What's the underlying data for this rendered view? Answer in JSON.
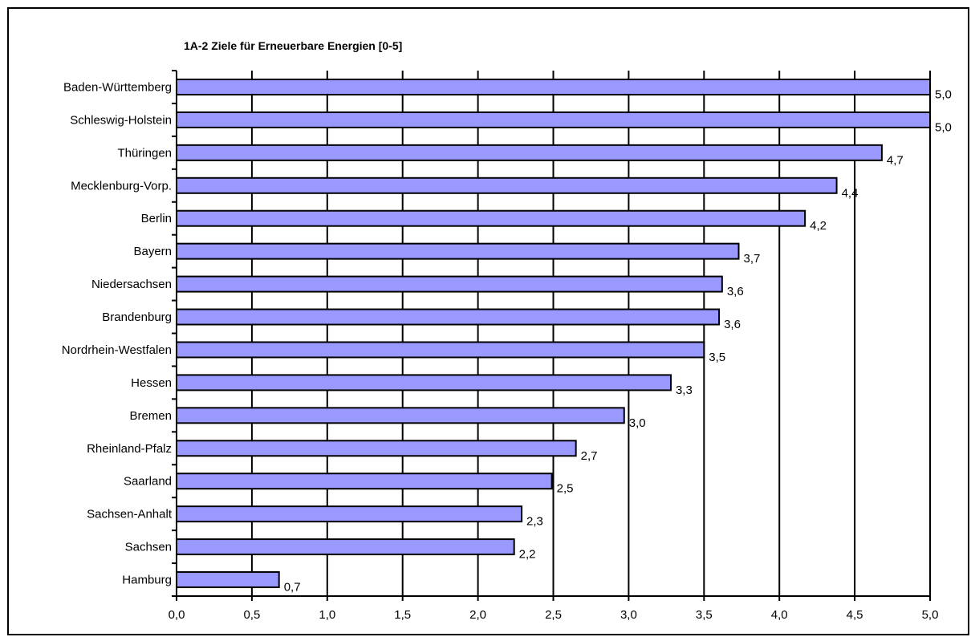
{
  "chart_data": {
    "type": "bar",
    "orientation": "horizontal",
    "title": "1A-2 Ziele für Erneuerbare Energien [0-5]",
    "xlabel": "",
    "ylabel": "",
    "xlim": [
      0,
      5
    ],
    "x_ticks": [
      "0,0",
      "0,5",
      "1,0",
      "1,5",
      "2,0",
      "2,5",
      "3,0",
      "3,5",
      "4,0",
      "4,5",
      "5,0"
    ],
    "grid": true,
    "legend": "none",
    "bar_color": "#9999ff",
    "categories": [
      "Baden-Württemberg",
      "Schleswig-Holstein",
      "Thüringen",
      "Mecklenburg-Vorp.",
      "Berlin",
      "Bayern",
      "Niedersachsen",
      "Brandenburg",
      "Nordrhein-Westfalen",
      "Hessen",
      "Bremen",
      "Rheinland-Pfalz",
      "Saarland",
      "Sachsen-Anhalt",
      "Sachsen",
      "Hamburg"
    ],
    "values": [
      5.0,
      5.0,
      4.68,
      4.38,
      4.17,
      3.73,
      3.62,
      3.6,
      3.5,
      3.28,
      2.97,
      2.65,
      2.49,
      2.29,
      2.24,
      0.68
    ],
    "value_labels": [
      "5,0",
      "5,0",
      "4,7",
      "4,4",
      "4,2",
      "3,7",
      "3,6",
      "3,6",
      "3,5",
      "3,3",
      "3,0",
      "2,7",
      "2,5",
      "2,3",
      "2,2",
      "0,7"
    ]
  }
}
